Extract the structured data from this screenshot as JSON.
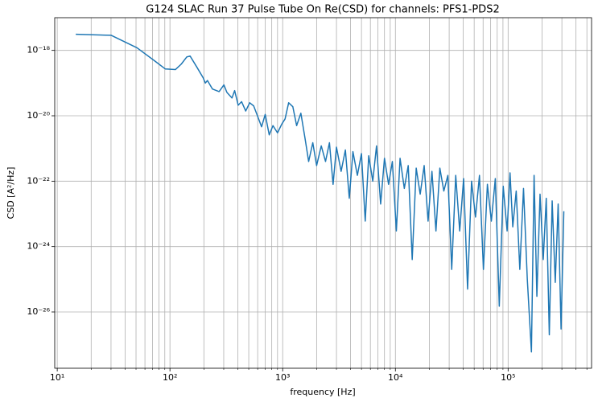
{
  "chart_data": {
    "type": "line",
    "log_x": true,
    "log_y": true,
    "grid": true,
    "minor_x_grid": true,
    "title": "G124 SLAC Run 37 Pulse Tube On Re(CSD) for channels: PFS1-PDS2",
    "xlabel": "frequency [Hz]",
    "ylabel": "CSD [A²/Hz]",
    "color": "#1f77b4",
    "xlim": [
      9.5,
      550000
    ],
    "ylim": [
      1.9e-28,
      1e-17
    ],
    "xticks": [
      {
        "value": 10,
        "label": "10¹"
      },
      {
        "value": 100,
        "label": "10²"
      },
      {
        "value": 1000,
        "label": "10³"
      },
      {
        "value": 10000,
        "label": "10⁴"
      },
      {
        "value": 100000,
        "label": "10⁵"
      }
    ],
    "yticks": [
      {
        "value": 1e-26,
        "label": "10⁻²⁶"
      },
      {
        "value": 1e-24,
        "label": "10⁻²⁴"
      },
      {
        "value": 1e-22,
        "label": "10⁻²²"
      },
      {
        "value": 1e-20,
        "label": "10⁻²⁰"
      },
      {
        "value": 1e-18,
        "label": "10⁻¹⁸"
      }
    ],
    "x": [
      14.6,
      30,
      51,
      73,
      91,
      112,
      126,
      141,
      151,
      174,
      197,
      206,
      215,
      238,
      273,
      301,
      320,
      355,
      375,
      403,
      432,
      470,
      510,
      553,
      600,
      650,
      700,
      760,
      820,
      900,
      980,
      1050,
      1130,
      1230,
      1330,
      1450,
      1580,
      1700,
      1850,
      2000,
      2200,
      2400,
      2600,
      2800,
      3000,
      3300,
      3600,
      3900,
      4200,
      4600,
      5000,
      5400,
      5800,
      6300,
      6800,
      7400,
      8000,
      8700,
      9400,
      10200,
      11000,
      12000,
      13000,
      14100,
      15300,
      16600,
      18000,
      19500,
      21100,
      22900,
      24800,
      26900,
      29200,
      31600,
      34300,
      37200,
      40300,
      43700,
      47400,
      51400,
      55700,
      60400,
      65500,
      71000,
      77000,
      83500,
      90500,
      98000,
      104000,
      110000,
      118000,
      127000,
      137000,
      148000,
      161000,
      170000,
      180000,
      192000,
      205000,
      218000,
      232000,
      246000,
      262000,
      278000,
      295000,
      312000
    ],
    "values": [
      3.1e-18,
      2.9e-18,
      1.2e-18,
      4.8e-19,
      2.7e-19,
      2.6e-19,
      3.8e-19,
      6.3e-19,
      6.7e-19,
      3e-19,
      1.45e-19,
      1e-19,
      1.2e-19,
      6.6e-20,
      5.5e-20,
      8.8e-20,
      5.2e-20,
      3.5e-20,
      5.9e-20,
      2.1e-20,
      2.7e-20,
      1.4e-20,
      2.5e-20,
      2e-20,
      9.6e-21,
      4.6e-21,
      1.1e-20,
      2.6e-21,
      5e-21,
      3e-21,
      5.5e-21,
      8e-21,
      2.5e-20,
      1.9e-20,
      5e-21,
      1.2e-20,
      2e-21,
      4e-22,
      1.5e-21,
      3e-22,
      1.2e-21,
      4e-22,
      1.5e-21,
      8e-23,
      1.1e-21,
      2e-22,
      9e-22,
      3e-23,
      8e-22,
      1.5e-22,
      7e-22,
      6e-24,
      6e-22,
      1e-22,
      1.2e-21,
      2e-23,
      5e-22,
      8e-23,
      4e-22,
      3e-24,
      5e-22,
      6e-23,
      3e-22,
      4e-25,
      2.5e-22,
      4e-23,
      3e-22,
      6e-24,
      2e-22,
      3e-24,
      2.5e-22,
      5e-23,
      1.5e-22,
      2e-25,
      1.5e-22,
      3e-24,
      1.2e-22,
      5e-26,
      1e-22,
      8e-24,
      1.5e-22,
      2e-25,
      8e-23,
      6e-24,
      1.2e-22,
      1.5e-26,
      7e-23,
      3e-24,
      1.8e-22,
      4e-24,
      5e-23,
      2e-25,
      6e-23,
      1e-25,
      6e-28,
      1.5e-22,
      3e-26,
      4e-23,
      4e-25,
      3e-23,
      2e-27,
      2.5e-23,
      8e-26,
      2e-23,
      3e-27,
      1.2e-23
    ]
  }
}
